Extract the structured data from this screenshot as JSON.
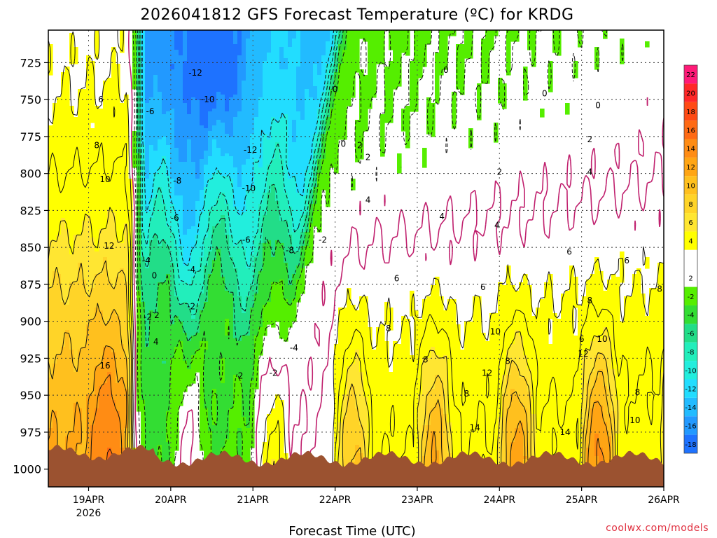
{
  "header": {
    "title": "2026041812 GFS Forecast Temperature (ºC) for KRDG"
  },
  "footer": {
    "xlabel": "Forecast Time (UTC)",
    "credit": "coolwx.com/models"
  },
  "chart_data": {
    "type": "contour",
    "title": "2026041812 GFS Forecast Temperature (ºC) for KRDG",
    "xlabel": "Forecast Time (UTC)",
    "ylabel": "",
    "y_axis": {
      "quantity": "pressure (hPa)",
      "ticks": [
        725,
        750,
        775,
        800,
        825,
        850,
        875,
        900,
        925,
        950,
        975,
        1000
      ],
      "range": [
        703,
        1012
      ],
      "inverted": true
    },
    "x_axis": {
      "ticks": [
        "19APR",
        "20APR",
        "21APR",
        "22APR",
        "23APR",
        "24APR",
        "25APR",
        "26APR"
      ],
      "year_label": "2026",
      "range_days": [
        -0.49,
        7.0
      ]
    },
    "colorbar": {
      "levels": [
        22,
        20,
        18,
        16,
        14,
        12,
        10,
        8,
        6,
        4,
        2,
        -2,
        -4,
        -6,
        -8,
        -10,
        -12,
        -14,
        -16,
        -18
      ],
      "colors": [
        "#ff1a78",
        "#ff2828",
        "#ff4a14",
        "#ff6a14",
        "#ff8c14",
        "#ffa514",
        "#ffc01e",
        "#ffd428",
        "#ffe632",
        "#ffff00",
        "#ffffff",
        "#55ee00",
        "#33dd33",
        "#22dd88",
        "#22eebb",
        "#22eedd",
        "#22ddff",
        "#22bbff",
        "#2299ff",
        "#1e72ff"
      ]
    },
    "contour_labels": [
      {
        "v": "-12",
        "d": 1.3,
        "p": 732
      },
      {
        "v": "-10",
        "d": 1.45,
        "p": 750
      },
      {
        "v": "-6",
        "d": 0.75,
        "p": 758
      },
      {
        "v": "-12",
        "d": 1.97,
        "p": 784
      },
      {
        "v": "-8",
        "d": 1.08,
        "p": 805
      },
      {
        "v": "-10",
        "d": 1.95,
        "p": 810
      },
      {
        "v": "-6",
        "d": 1.05,
        "p": 830
      },
      {
        "v": "-6",
        "d": 1.92,
        "p": 845
      },
      {
        "v": "-8",
        "d": 2.45,
        "p": 852
      },
      {
        "v": "-4",
        "d": 0.7,
        "p": 859
      },
      {
        "v": "-4",
        "d": 1.25,
        "p": 865
      },
      {
        "v": "-2",
        "d": 1.25,
        "p": 890
      },
      {
        "v": "-2",
        "d": 0.72,
        "p": 897
      },
      {
        "v": "-4",
        "d": 2.5,
        "p": 918
      },
      {
        "v": "-2",
        "d": 2.25,
        "p": 935
      },
      {
        "v": "-2",
        "d": 2.85,
        "p": 845
      },
      {
        "v": "0",
        "d": 0.8,
        "p": 869
      },
      {
        "v": "2",
        "d": 0.83,
        "p": 896
      },
      {
        "v": "4",
        "d": 0.82,
        "p": 914
      },
      {
        "v": "2",
        "d": 1.85,
        "p": 937
      },
      {
        "v": "6",
        "d": 0.15,
        "p": 750
      },
      {
        "v": "8",
        "d": 0.1,
        "p": 781
      },
      {
        "v": "10",
        "d": 0.2,
        "p": 804
      },
      {
        "v": "12",
        "d": 0.25,
        "p": 849
      },
      {
        "v": "16",
        "d": 0.2,
        "p": 930
      },
      {
        "v": "0",
        "d": 4.35,
        "p": 730
      },
      {
        "v": "0",
        "d": 3.0,
        "p": 743
      },
      {
        "v": "0",
        "d": 5.55,
        "p": 746
      },
      {
        "v": "0",
        "d": 6.2,
        "p": 754
      },
      {
        "v": "0",
        "d": 3.1,
        "p": 780
      },
      {
        "v": "2",
        "d": 6.1,
        "p": 777
      },
      {
        "v": "2",
        "d": 3.3,
        "p": 781
      },
      {
        "v": "2",
        "d": 3.4,
        "p": 789
      },
      {
        "v": "2",
        "d": 5.0,
        "p": 799
      },
      {
        "v": "4",
        "d": 6.1,
        "p": 799
      },
      {
        "v": "4",
        "d": 3.4,
        "p": 818
      },
      {
        "v": "4",
        "d": 4.3,
        "p": 829
      },
      {
        "v": "4",
        "d": 4.97,
        "p": 835
      },
      {
        "v": "6",
        "d": 5.85,
        "p": 853
      },
      {
        "v": "6",
        "d": 6.55,
        "p": 859
      },
      {
        "v": "6",
        "d": 3.75,
        "p": 871
      },
      {
        "v": "6",
        "d": 4.8,
        "p": 877
      },
      {
        "v": "8",
        "d": 6.95,
        "p": 878
      },
      {
        "v": "8",
        "d": 6.1,
        "p": 886
      },
      {
        "v": "8",
        "d": 3.65,
        "p": 905
      },
      {
        "v": "10",
        "d": 4.95,
        "p": 907
      },
      {
        "v": "10",
        "d": 6.25,
        "p": 912
      },
      {
        "v": "6",
        "d": 6.0,
        "p": 912
      },
      {
        "v": "12",
        "d": 6.02,
        "p": 922
      },
      {
        "v": "8",
        "d": 5.1,
        "p": 927
      },
      {
        "v": "8",
        "d": 4.1,
        "p": 926
      },
      {
        "v": "12",
        "d": 4.85,
        "p": 935
      },
      {
        "v": "8",
        "d": 4.6,
        "p": 949
      },
      {
        "v": "8",
        "d": 6.68,
        "p": 948
      },
      {
        "v": "14",
        "d": 4.7,
        "p": 972
      },
      {
        "v": "14",
        "d": 5.8,
        "p": 975
      },
      {
        "v": "10",
        "d": 6.65,
        "p": 967
      }
    ]
  }
}
